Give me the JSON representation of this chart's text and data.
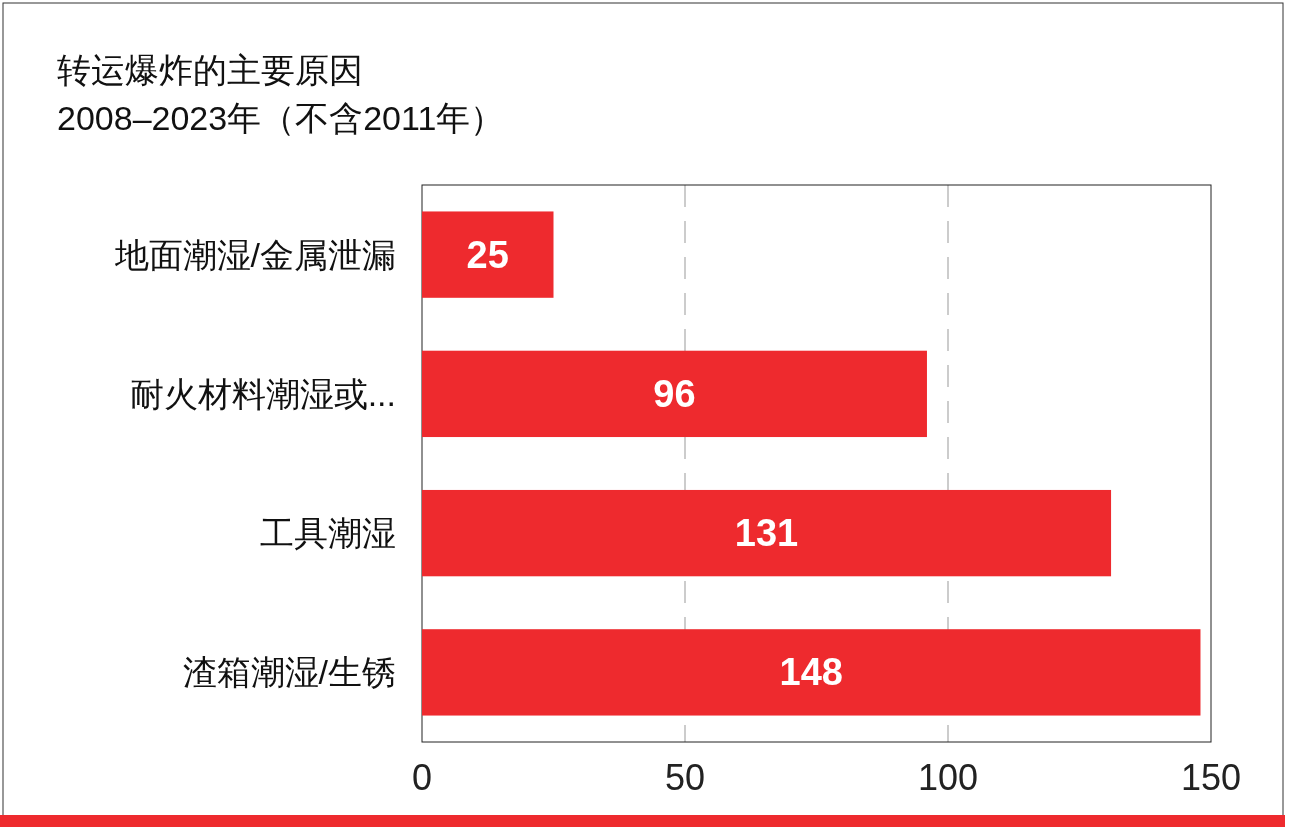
{
  "chart_data": {
    "type": "bar",
    "orientation": "horizontal",
    "title": "转运爆炸的主要原因",
    "subtitle": "2008–2023年（不含2011年）",
    "categories": [
      "地面潮湿/金属泄漏",
      "耐火材料潮湿或...",
      "工具潮湿",
      "渣箱潮湿/生锈"
    ],
    "values": [
      25,
      96,
      131,
      148
    ],
    "color": "#ee2a2e",
    "xlim": [
      0,
      150
    ],
    "xticks": [
      0,
      50,
      100,
      150
    ],
    "grid": "x",
    "data_labels": true
  }
}
